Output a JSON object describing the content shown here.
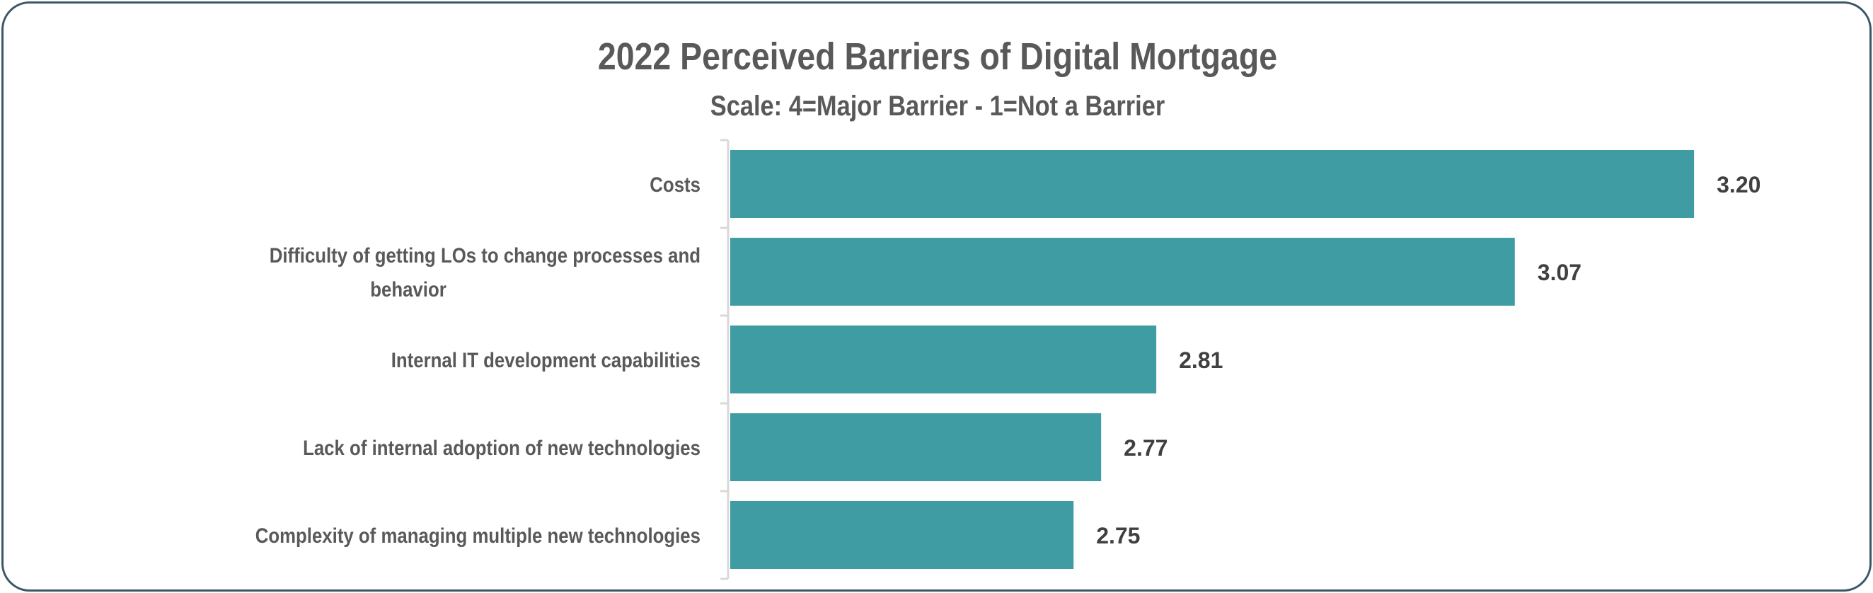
{
  "chart_data": {
    "type": "bar",
    "orientation": "horizontal",
    "title": "2022 Perceived Barriers of Digital Mortgage",
    "subtitle": "Scale:  4=Major Barrier - 1=Not a Barrier",
    "categories": [
      [
        "Costs"
      ],
      [
        "Difficulty of getting LOs to change processes and",
        "behavior"
      ],
      [
        "Internal IT development capabilities"
      ],
      [
        "Lack of internal adoption of new technologies"
      ],
      [
        "Complexity of managing multiple new technologies"
      ]
    ],
    "values": [
      3.2,
      3.07,
      2.81,
      2.77,
      2.75
    ],
    "value_labels": [
      "3.20",
      "3.07",
      "2.81",
      "2.77",
      "2.75"
    ],
    "xlim": [
      2.5,
      3.3
    ],
    "xlabel": "",
    "ylabel": "",
    "grid": false,
    "legend": "none",
    "colors": {
      "bar": "#3f9ca2",
      "text": "#595959",
      "value_text": "#404040",
      "border": "#3b5866",
      "axis": "#d9d9d9"
    }
  }
}
